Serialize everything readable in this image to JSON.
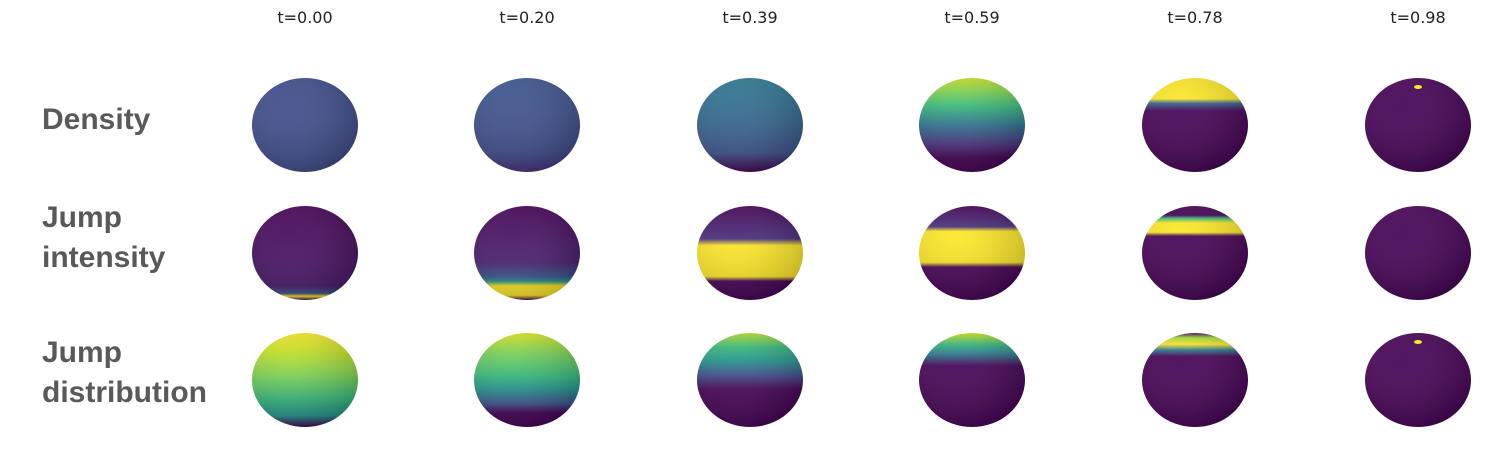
{
  "columns": [
    "t=0.00",
    "t=0.20",
    "t=0.39",
    "t=0.59",
    "t=0.78",
    "t=0.98"
  ],
  "rows": [
    {
      "label": "Density"
    },
    {
      "label": "Jump intensity"
    },
    {
      "label": "Jump distribution"
    }
  ]
}
